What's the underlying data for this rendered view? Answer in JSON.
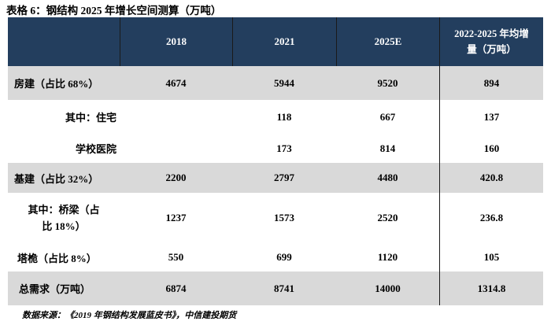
{
  "title": "表格 6：钢结构 2025 年增长空间测算（万吨）",
  "table": {
    "columns": [
      "",
      "2018",
      "2021",
      "2025E",
      "2022-2025 年均增量（万吨）"
    ],
    "rows": [
      {
        "label": "房建（占比 68%）",
        "values": [
          "4674",
          "5944",
          "9520",
          "894"
        ]
      },
      {
        "label": "其中：住宅",
        "values": [
          "",
          "118",
          "667",
          "137"
        ]
      },
      {
        "label": "学校医院",
        "values": [
          "",
          "173",
          "814",
          "160"
        ]
      },
      {
        "label": "基建（占比 32%）",
        "values": [
          "2200",
          "2797",
          "4480",
          "420.8"
        ]
      },
      {
        "label": "其中：桥梁（占比 18%）",
        "values": [
          "1237",
          "1573",
          "2520",
          "236.8"
        ]
      },
      {
        "label": "塔桅（占比 8%）",
        "values": [
          "550",
          "699",
          "1120",
          "105"
        ]
      },
      {
        "label": "总需求（万吨）",
        "values": [
          "6874",
          "8741",
          "14000",
          "1314.8"
        ]
      }
    ]
  },
  "source_note": "数据来源：《2019 年钢结构发展蓝皮书》，中信建投期货",
  "colors": {
    "header_bg": "#233E5E",
    "header_text": "#FFFFFF",
    "shade_row_bg": "#D9D9D9",
    "divider": "#1A1A1A"
  }
}
